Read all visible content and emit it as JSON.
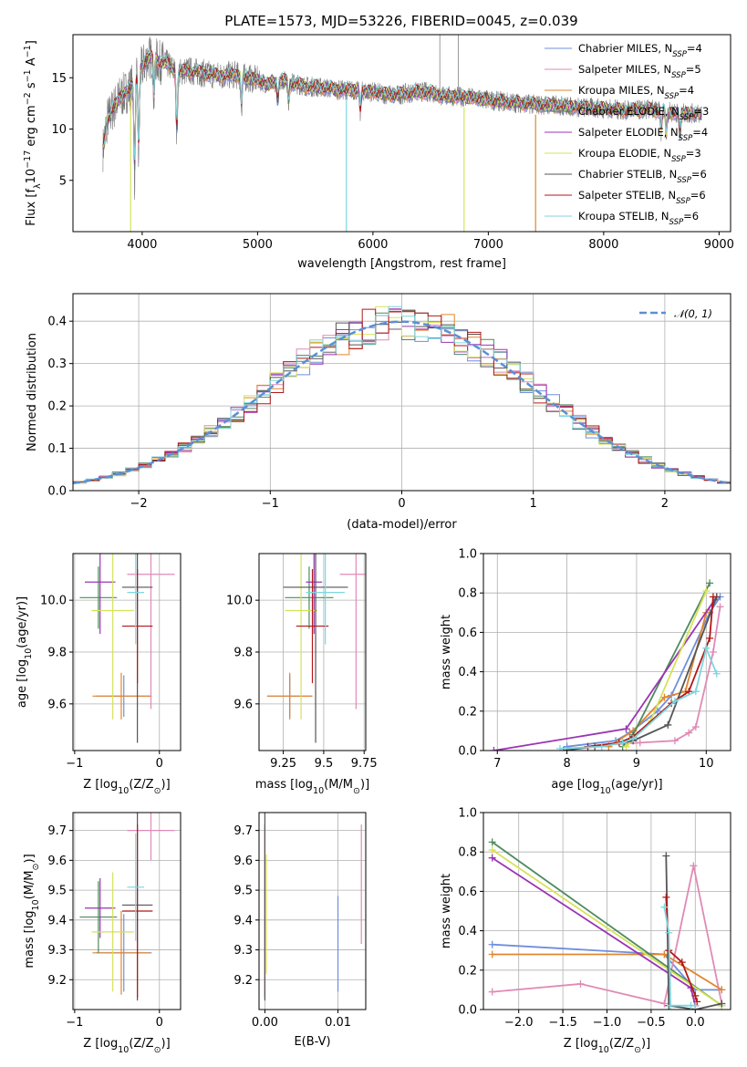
{
  "figure_title": "PLATE=1573, MJD=53226, FIBERID=0045, z=0.039",
  "colors": {
    "Chabrier MILES": "#6f8fdc",
    "Salpeter MILES": "#e08ab6",
    "Kroupa MILES": "#e0862e",
    "Chabrier ELODIE": "#4e8a5e",
    "Salpeter ELODIE": "#9b34b4",
    "Kroupa ELODIE": "#d6e25a",
    "Chabrier STELIB": "#555555",
    "Salpeter STELIB": "#b21818",
    "Kroupa STELIB": "#7cd6df"
  },
  "chart_data": [
    {
      "id": "spectrum",
      "type": "line",
      "title": "PLATE=1573, MJD=53226, FIBERID=0045, z=0.039",
      "xlabel": "wavelength [Angstrom, rest frame]",
      "ylabel_parts": [
        "Flux [f",
        "λ",
        "10",
        "−17",
        " erg cm",
        "−2",
        " s",
        "−1",
        " A",
        "−1",
        "]"
      ],
      "xlim": [
        3400,
        9100
      ],
      "ylim": [
        0,
        19.2
      ],
      "xticks": [
        4000,
        5000,
        6000,
        7000,
        8000,
        9000
      ],
      "yticks": [
        5,
        10,
        15
      ],
      "grid": false,
      "legend_position": "top-right",
      "legend": [
        {
          "name": "Chabrier MILES",
          "nssp": "4"
        },
        {
          "name": "Salpeter MILES",
          "nssp": "5"
        },
        {
          "name": "Kroupa MILES",
          "nssp": "4"
        },
        {
          "name": "Chabrier ELODIE",
          "nssp": "3"
        },
        {
          "name": "Salpeter ELODIE",
          "nssp": "4"
        },
        {
          "name": "Kroupa ELODIE",
          "nssp": "3"
        },
        {
          "name": "Chabrier STELIB",
          "nssp": "6"
        },
        {
          "name": "Salpeter STELIB",
          "nssp": "6"
        },
        {
          "name": "Kroupa STELIB",
          "nssp": "6"
        }
      ],
      "continuum_x": [
        3660,
        3700,
        3750,
        3800,
        3850,
        3900,
        3950,
        4000,
        4050,
        4100,
        4150,
        4200,
        4250,
        4300,
        4400,
        4500,
        4600,
        4700,
        4800,
        4900,
        5000,
        5100,
        5200,
        5300,
        5400,
        5500,
        5600,
        5700,
        5800,
        5900,
        6000,
        6100,
        6200,
        6300,
        6400,
        6500,
        6600,
        6700,
        6800,
        6900,
        7000,
        7200,
        7400,
        7600,
        7800,
        8000,
        8200,
        8400,
        8600,
        8800
      ],
      "continuum_y": [
        8,
        11,
        12,
        13,
        13.5,
        14,
        15,
        16,
        17,
        17,
        16.5,
        16.5,
        16,
        15.5,
        15.7,
        15.5,
        15.3,
        15.2,
        15.3,
        15,
        14.8,
        14.3,
        14.8,
        14.5,
        14.2,
        14.1,
        14,
        13.8,
        13.8,
        13.7,
        13.6,
        13.4,
        13.3,
        13.5,
        13.6,
        13.6,
        13.2,
        13.2,
        13.1,
        13,
        12.8,
        12.6,
        12.4,
        12.3,
        12.1,
        12,
        11.8,
        11.9,
        11.6,
        11.5
      ],
      "absorption_lines": [
        {
          "x": 3934,
          "depth": 9.5
        },
        {
          "x": 3969,
          "depth": 8
        },
        {
          "x": 4102,
          "depth": 4
        },
        {
          "x": 4300,
          "depth": 6
        },
        {
          "x": 4861,
          "depth": 3
        },
        {
          "x": 5175,
          "depth": 2
        },
        {
          "x": 5270,
          "depth": 2
        },
        {
          "x": 5890,
          "depth": 2
        },
        {
          "x": 8498,
          "depth": 2
        },
        {
          "x": 8542,
          "depth": 2.5
        },
        {
          "x": 8662,
          "depth": 2.5
        }
      ],
      "model_dropouts": [
        {
          "x": 3900,
          "color": "Kroupa ELODIE"
        },
        {
          "x": 5770,
          "color": "Kroupa STELIB"
        },
        {
          "x": 6790,
          "color": "Kroupa ELODIE"
        },
        {
          "x": 7410,
          "color": "Kroupa MILES"
        }
      ],
      "data_spikes": [
        {
          "x": 6580,
          "y": 19.2
        },
        {
          "x": 6740,
          "y": 19.2
        }
      ]
    },
    {
      "id": "residuals",
      "type": "step",
      "xlabel": "(data-model)/error",
      "ylabel": "Normed distribution",
      "xlim": [
        -2.5,
        2.5
      ],
      "ylim": [
        0,
        0.465
      ],
      "xticks": [
        -2,
        -1,
        0,
        1,
        2
      ],
      "yticks": [
        0.0,
        0.1,
        0.2,
        0.3,
        0.4
      ],
      "grid": true,
      "legend_position": "top-right",
      "reference_curve": {
        "name": "𝒩(0, 1)",
        "mean": 0,
        "sigma": 1,
        "color": "#5b8fd6"
      },
      "bin_width": 0.1
    },
    {
      "id": "age-vs-Z",
      "type": "errorbar",
      "xlabel_parts": [
        "Z [log",
        "10",
        "(Z/Z",
        "⊙",
        ")]"
      ],
      "ylabel_parts": [
        "age  [log",
        "10",
        "(age/yr)]"
      ],
      "xlim": [
        -1.02,
        0.25
      ],
      "ylim": [
        9.42,
        10.18
      ],
      "xticks": [
        -1,
        0
      ],
      "yticks": [
        9.6,
        9.8,
        10.0
      ],
      "grid": true,
      "points": [
        {
          "c": "Chabrier MILES",
          "x": -0.42,
          "y": 9.63,
          "xe": 0.33,
          "ye": 0.08
        },
        {
          "c": "Salpeter MILES",
          "x": -0.1,
          "y": 10.1,
          "xe": 0.28,
          "ye": 0.52
        },
        {
          "c": "Kroupa MILES",
          "x": -0.45,
          "y": 9.63,
          "xe": 0.34,
          "ye": 0.09
        },
        {
          "c": "Chabrier ELODIE",
          "x": -0.72,
          "y": 10.01,
          "xe": 0.22,
          "ye": 0.12
        },
        {
          "c": "Salpeter ELODIE",
          "x": -0.7,
          "y": 10.07,
          "xe": 0.18,
          "ye": 0.2
        },
        {
          "c": "Kroupa ELODIE",
          "x": -0.55,
          "y": 9.96,
          "xe": 0.25,
          "ye": 0.42
        },
        {
          "c": "Chabrier STELIB",
          "x": -0.26,
          "y": 10.05,
          "xe": 0.18,
          "ye": 0.6
        },
        {
          "c": "Salpeter STELIB",
          "x": -0.26,
          "y": 9.9,
          "xe": 0.18,
          "ye": 0.22
        },
        {
          "c": "Kroupa STELIB",
          "x": -0.28,
          "y": 10.03,
          "xe": 0.1,
          "ye": 0.2
        }
      ]
    },
    {
      "id": "age-vs-mass",
      "type": "errorbar",
      "xlabel_parts": [
        "mass [log",
        "10",
        "(M/M",
        "⊙",
        ")]"
      ],
      "xlim": [
        9.1,
        9.76
      ],
      "ylim": [
        9.42,
        10.18
      ],
      "xticks": [
        9.25,
        9.5,
        9.75
      ],
      "yticks": [
        9.6,
        9.8,
        10.0
      ],
      "grid": true,
      "points": [
        {
          "c": "Chabrier MILES",
          "x": 9.29,
          "y": 9.63,
          "xe": 0.14,
          "ye": 0.08
        },
        {
          "c": "Salpeter MILES",
          "x": 9.7,
          "y": 10.1,
          "xe": 0.1,
          "ye": 0.52
        },
        {
          "c": "Kroupa MILES",
          "x": 9.29,
          "y": 9.63,
          "xe": 0.14,
          "ye": 0.09
        },
        {
          "c": "Chabrier ELODIE",
          "x": 9.41,
          "y": 10.01,
          "xe": 0.15,
          "ye": 0.12
        },
        {
          "c": "Salpeter ELODIE",
          "x": 9.44,
          "y": 10.07,
          "xe": 0.05,
          "ye": 0.2
        },
        {
          "c": "Kroupa ELODIE",
          "x": 9.36,
          "y": 9.96,
          "xe": 0.1,
          "ye": 0.42
        },
        {
          "c": "Chabrier STELIB",
          "x": 9.45,
          "y": 10.05,
          "xe": 0.2,
          "ye": 0.6
        },
        {
          "c": "Salpeter STELIB",
          "x": 9.43,
          "y": 9.9,
          "xe": 0.1,
          "ye": 0.22
        },
        {
          "c": "Kroupa STELIB",
          "x": 9.51,
          "y": 10.03,
          "xe": 0.12,
          "ye": 0.2
        }
      ]
    },
    {
      "id": "massweight-vs-age",
      "type": "line",
      "xlabel_parts": [
        "age  [log",
        "10",
        "(age/yr)]"
      ],
      "ylabel": "mass weight",
      "xlim": [
        6.8,
        10.35
      ],
      "ylim": [
        0,
        1
      ],
      "xticks": [
        7,
        8,
        9,
        10
      ],
      "yticks": [
        0.0,
        0.2,
        0.4,
        0.6,
        0.8,
        1.0
      ],
      "grid": true,
      "series": [
        {
          "c": "Chabrier MILES",
          "x": [
            8.0,
            8.7,
            8.9,
            9.3,
            9.5,
            10.05,
            10.2
          ],
          "y": [
            0.02,
            0.05,
            0.09,
            0.2,
            0.28,
            0.7,
            0.78
          ]
        },
        {
          "c": "Salpeter MILES",
          "x": [
            8.6,
            9.05,
            9.55,
            9.75,
            9.85,
            10.1,
            10.2
          ],
          "y": [
            0.03,
            0.04,
            0.05,
            0.09,
            0.12,
            0.5,
            0.73
          ]
        },
        {
          "c": "Kroupa MILES",
          "x": [
            8.6,
            8.95,
            9.4,
            9.7,
            10.0,
            10.15
          ],
          "y": [
            0.02,
            0.1,
            0.27,
            0.3,
            0.7,
            0.78
          ]
        },
        {
          "c": "Chabrier ELODIE",
          "x": [
            8.8,
            8.95,
            10.05
          ],
          "y": [
            0.02,
            0.08,
            0.85
          ]
        },
        {
          "c": "Salpeter ELODIE",
          "x": [
            6.95,
            8.85,
            10.15
          ],
          "y": [
            0.0,
            0.11,
            0.78
          ]
        },
        {
          "c": "Kroupa ELODIE",
          "x": [
            8.85,
            9.2,
            10.0
          ],
          "y": [
            0.02,
            0.15,
            0.81
          ]
        },
        {
          "c": "Chabrier STELIB",
          "x": [
            7.95,
            8.4,
            8.8,
            8.95,
            9.45,
            10.15
          ],
          "y": [
            0.0,
            0.02,
            0.04,
            0.05,
            0.13,
            0.78
          ]
        },
        {
          "c": "Salpeter STELIB",
          "x": [
            8.3,
            8.75,
            8.95,
            9.5,
            9.75,
            10.05,
            10.1
          ],
          "y": [
            0.02,
            0.04,
            0.07,
            0.24,
            0.3,
            0.57,
            0.78
          ]
        },
        {
          "c": "Kroupa STELIB",
          "x": [
            7.9,
            8.5,
            8.8,
            8.95,
            9.55,
            9.85,
            10.0,
            10.15
          ],
          "y": [
            0.01,
            0.02,
            0.04,
            0.06,
            0.25,
            0.3,
            0.52,
            0.39
          ]
        }
      ]
    },
    {
      "id": "mass-vs-Z",
      "type": "errorbar",
      "xlabel_parts": [
        "Z [log",
        "10",
        "(Z/Z",
        "⊙",
        ")]"
      ],
      "ylabel_parts": [
        "mass [log",
        "10",
        "(M/M",
        "⊙",
        ")]"
      ],
      "xlim": [
        -1.02,
        0.25
      ],
      "ylim": [
        9.1,
        9.76
      ],
      "xticks": [
        -1,
        0
      ],
      "yticks": [
        9.2,
        9.3,
        9.4,
        9.5,
        9.6,
        9.7
      ],
      "grid": true,
      "points": [
        {
          "c": "Chabrier MILES",
          "x": -0.42,
          "y": 9.29,
          "xe": 0.33,
          "ye": 0.13
        },
        {
          "c": "Salpeter MILES",
          "x": -0.1,
          "y": 9.7,
          "xe": 0.28,
          "ye": 0.1
        },
        {
          "c": "Kroupa MILES",
          "x": -0.45,
          "y": 9.29,
          "xe": 0.34,
          "ye": 0.14
        },
        {
          "c": "Chabrier ELODIE",
          "x": -0.72,
          "y": 9.41,
          "xe": 0.22,
          "ye": 0.12
        },
        {
          "c": "Salpeter ELODIE",
          "x": -0.7,
          "y": 9.44,
          "xe": 0.18,
          "ye": 0.1
        },
        {
          "c": "Kroupa ELODIE",
          "x": -0.55,
          "y": 9.36,
          "xe": 0.25,
          "ye": 0.2
        },
        {
          "c": "Chabrier STELIB",
          "x": -0.26,
          "y": 9.45,
          "xe": 0.18,
          "ye": 0.32
        },
        {
          "c": "Salpeter STELIB",
          "x": -0.26,
          "y": 9.43,
          "xe": 0.18,
          "ye": 0.29
        },
        {
          "c": "Kroupa STELIB",
          "x": -0.28,
          "y": 9.51,
          "xe": 0.1,
          "ye": 0.18
        }
      ]
    },
    {
      "id": "mass-vs-ebv",
      "type": "errorbar",
      "xlabel": "E(B-V)",
      "xlim": [
        -0.0008,
        0.0138
      ],
      "ylim": [
        9.1,
        9.76
      ],
      "xticks": [
        0.0,
        0.01
      ],
      "xticklabels": [
        "0.00",
        "0.01"
      ],
      "yticks": [
        9.2,
        9.3,
        9.4,
        9.5,
        9.6,
        9.7
      ],
      "grid": true,
      "points": [
        {
          "c": "Chabrier MILES",
          "x": 0.01,
          "y": 9.32,
          "xe": 0,
          "ye": 0.16
        },
        {
          "c": "Salpeter MILES",
          "x": 0.0132,
          "y": 9.52,
          "xe": 0,
          "ye": 0.2
        },
        {
          "c": "Salpeter STELIB",
          "x": 0.0,
          "y": 9.43,
          "xe": 0,
          "ye": 0.29
        },
        {
          "c": "Chabrier STELIB",
          "x": 0.0,
          "y": 9.45,
          "xe": 0,
          "ye": 0.32
        },
        {
          "c": "Kroupa ELODIE",
          "x": 0.0002,
          "y": 9.42,
          "xe": 0,
          "ye": 0.2
        }
      ]
    },
    {
      "id": "massweight-vs-Z",
      "type": "line",
      "xlabel_parts": [
        "Z [log",
        "10",
        "(Z/Z",
        "⊙",
        ")]"
      ],
      "ylabel": "mass weight",
      "xlim": [
        -2.4,
        0.4
      ],
      "ylim": [
        0,
        1
      ],
      "xticks": [
        -2.0,
        -1.5,
        -1.0,
        -0.5,
        0.0
      ],
      "xticklabels": [
        "−2.0",
        "−1.5",
        "−1.0",
        "−0.5",
        "0.0"
      ],
      "yticks": [
        0.0,
        0.2,
        0.4,
        0.6,
        0.8,
        1.0
      ],
      "grid": true,
      "series": [
        {
          "c": "Chabrier MILES",
          "x": [
            -2.3,
            -0.35,
            0.0,
            0.3
          ],
          "y": [
            0.33,
            0.28,
            0.1,
            0.1
          ]
        },
        {
          "c": "Salpeter MILES",
          "x": [
            -2.3,
            -1.3,
            -0.35,
            -0.02,
            0.3
          ],
          "y": [
            0.09,
            0.13,
            0.03,
            0.73,
            0.03
          ]
        },
        {
          "c": "Kroupa MILES",
          "x": [
            -2.3,
            -0.35,
            0.3
          ],
          "y": [
            0.28,
            0.28,
            0.1
          ]
        },
        {
          "c": "Chabrier ELODIE",
          "x": [
            -2.3,
            0.3
          ],
          "y": [
            0.85,
            0.02
          ]
        },
        {
          "c": "Salpeter ELODIE",
          "x": [
            -2.3,
            -0.05,
            0.0
          ],
          "y": [
            0.77,
            0.11,
            0.02
          ]
        },
        {
          "c": "Kroupa ELODIE",
          "x": [
            -2.3,
            0.3
          ],
          "y": [
            0.81,
            0.02
          ]
        },
        {
          "c": "Chabrier STELIB",
          "x": [
            -0.33,
            -0.3,
            0.0,
            0.3
          ],
          "y": [
            0.78,
            0.02,
            0.0,
            0.03
          ]
        },
        {
          "c": "Salpeter STELIB",
          "x": [
            -0.33,
            -0.3,
            -0.15,
            0.0,
            0.02
          ],
          "y": [
            0.57,
            0.3,
            0.24,
            0.07,
            0.04
          ]
        },
        {
          "c": "Kroupa STELIB",
          "x": [
            -0.35,
            -0.3,
            -0.28,
            -0.05,
            0.0
          ],
          "y": [
            0.52,
            0.39,
            0.02,
            0.02,
            0.02
          ]
        }
      ]
    }
  ]
}
